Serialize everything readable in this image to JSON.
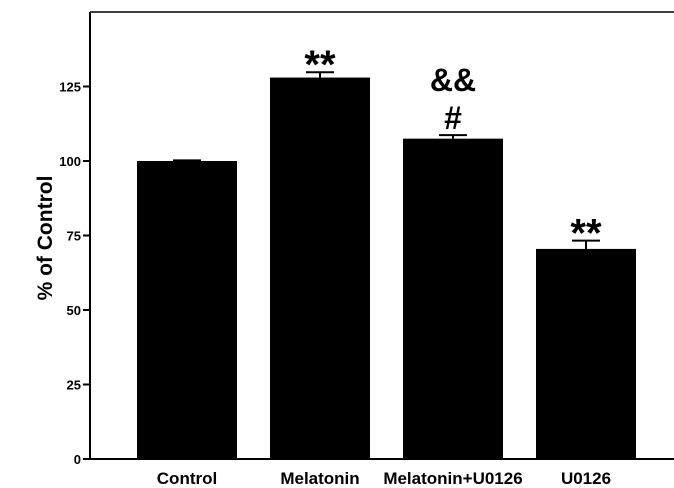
{
  "chart_data": {
    "type": "bar",
    "title": "",
    "xlabel": "",
    "ylabel": "% of Control",
    "ylim": [
      0,
      150
    ],
    "yticks": [
      0,
      25,
      50,
      75,
      100,
      125
    ],
    "grid": false,
    "categories": [
      "Control",
      "Melatonin",
      "Melatonin+U0126",
      "U0126"
    ],
    "values": [
      100,
      128,
      107.5,
      70.5
    ],
    "errors": [
      0.2,
      1.8,
      1.2,
      2.8
    ],
    "annotations": [
      {
        "category": "Melatonin",
        "lines": [
          "**"
        ]
      },
      {
        "category": "Melatonin+U0126",
        "lines": [
          "&&",
          "#"
        ]
      },
      {
        "category": "U0126",
        "lines": [
          "**"
        ]
      }
    ],
    "colors": {
      "bar": "#000000",
      "axis": "#000000"
    }
  }
}
